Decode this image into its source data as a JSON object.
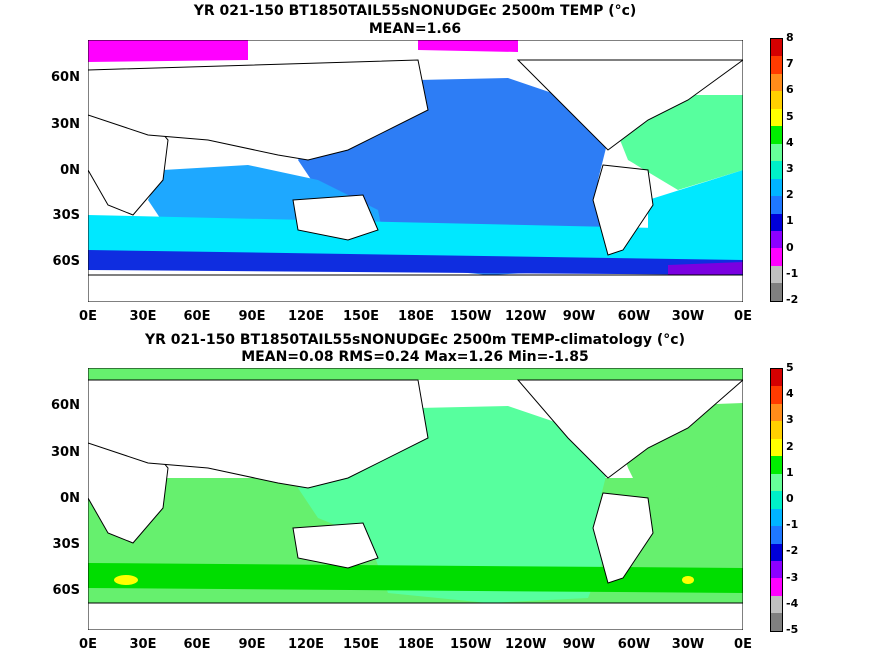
{
  "top": {
    "title": "YR 021-150 BT1850TAIL55sNONUDGEc 2500m TEMP (°c)",
    "subtitle": "MEAN=1.66",
    "colorbar_labels": [
      "8",
      "7",
      "6",
      "5",
      "4",
      "3",
      "2",
      "1",
      "0",
      "-1",
      "-2"
    ],
    "colorbar_colors": [
      "#d40000",
      "#ff3b00",
      "#ff8c1a",
      "#ffd000",
      "#ffff00",
      "#00ee00",
      "#66ff99",
      "#00f0c8",
      "#00b4ff",
      "#1e78ff",
      "#0000d8",
      "#8c00ff",
      "#ff00ff",
      "#c0c0c0",
      "#808080"
    ]
  },
  "bottom": {
    "title": "YR 021-150 BT1850TAIL55sNONUDGEc 2500m TEMP-climatology (°c)",
    "subtitle": "MEAN=0.08   RMS=0.24   Max=1.26   Min=-1.85",
    "colorbar_labels": [
      "5",
      "4",
      "3",
      "2",
      "1",
      "0",
      "-1",
      "-2",
      "-3",
      "-4",
      "-5"
    ],
    "colorbar_colors": [
      "#d40000",
      "#ff3b00",
      "#ff8c1a",
      "#ffd000",
      "#ffff00",
      "#00ee00",
      "#66ff99",
      "#00f0c8",
      "#00b4ff",
      "#1e78ff",
      "#0000d8",
      "#8c00ff",
      "#ff00ff",
      "#c0c0c0",
      "#808080"
    ]
  },
  "lat_labels": [
    "60N",
    "30N",
    "0N",
    "30S",
    "60S"
  ],
  "lon_labels": [
    "0E",
    "30E",
    "60E",
    "90E",
    "120E",
    "150E",
    "180E",
    "150W",
    "120W",
    "90W",
    "60W",
    "30W",
    "0E"
  ],
  "legend_colors": {
    "deep_blue": "#2d7df5",
    "light_blue": "#1ea8ff",
    "cyan": "#00e8ff",
    "mint": "#57ff9e",
    "green": "#00dd00",
    "blue": "#1020e0",
    "purple": "#7a00e0",
    "magenta": "#ff00ff",
    "yellow": "#ffff00"
  }
}
